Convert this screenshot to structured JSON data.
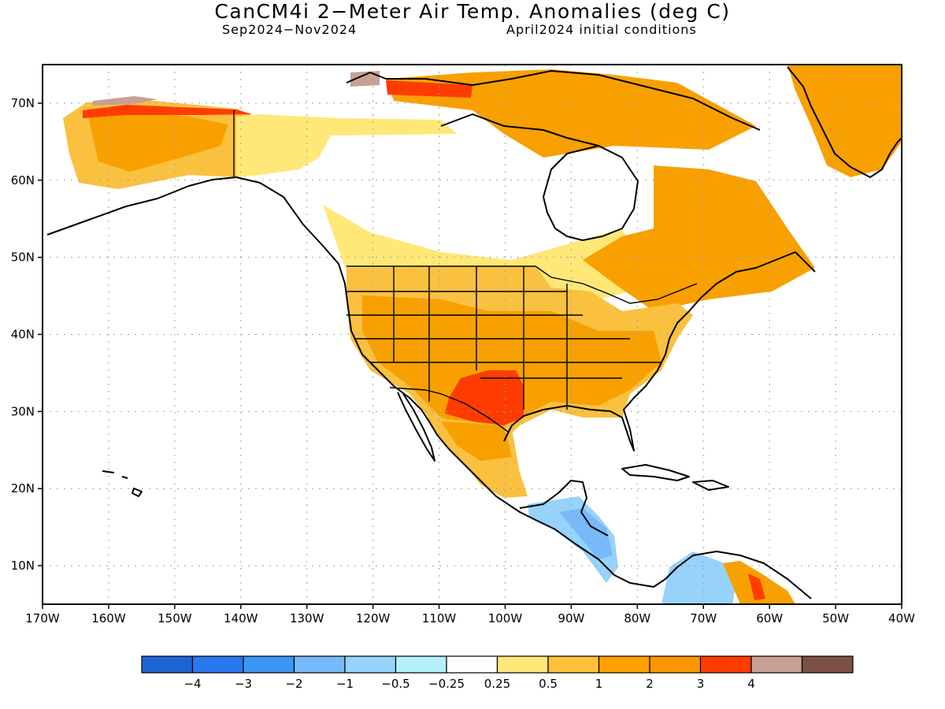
{
  "title": "CanCM4i 2−Meter Air Temp. Anomalies (deg C)",
  "period": "Sep2024−Nov2024",
  "initial_conditions": "April2024 initial conditions",
  "map": {
    "lon_range": [
      -170,
      -40
    ],
    "lat_range": [
      5,
      75
    ],
    "lon_ticks": [
      -170,
      -160,
      -150,
      -140,
      -130,
      -120,
      -110,
      -100,
      -90,
      -80,
      -70,
      -60,
      -50,
      -40
    ],
    "lon_labels": [
      "170W",
      "160W",
      "150W",
      "140W",
      "130W",
      "120W",
      "110W",
      "100W",
      "90W",
      "80W",
      "70W",
      "60W",
      "50W",
      "40W"
    ],
    "lat_ticks": [
      10,
      20,
      30,
      40,
      50,
      60,
      70
    ],
    "lat_labels": [
      "10N",
      "20N",
      "30N",
      "40N",
      "50N",
      "60N",
      "70N"
    ],
    "grid": "dotted"
  },
  "legend": {
    "bins": [
      {
        "color": "#1e64d2"
      },
      {
        "color": "#2a78f0"
      },
      {
        "color": "#3c96f5"
      },
      {
        "color": "#78b9fa"
      },
      {
        "color": "#96d2fa"
      },
      {
        "color": "#b4f0fa"
      },
      {
        "color": "#ffffff"
      },
      {
        "color": "#ffe878"
      },
      {
        "color": "#ffc03c"
      },
      {
        "color": "#ffa000"
      },
      {
        "color": "#fa9600"
      },
      {
        "color": "#ff3c00"
      },
      {
        "color": "#c8a096"
      },
      {
        "color": "#7d5046"
      }
    ],
    "labels": [
      "−4",
      "−3",
      "−2",
      "−1",
      "−0.5",
      "−0.25",
      "0.25",
      "0.5",
      "1",
      "2",
      "3",
      "4"
    ]
  },
  "shading_colors": {
    "light_yellow": "#ffe878",
    "light_orange": "#fac040",
    "orange": "#f8a000",
    "red": "#ff3c00",
    "brown": "#c8a096",
    "light_blue": "#96d2fa",
    "pale_blue": "#b4f0fa"
  }
}
